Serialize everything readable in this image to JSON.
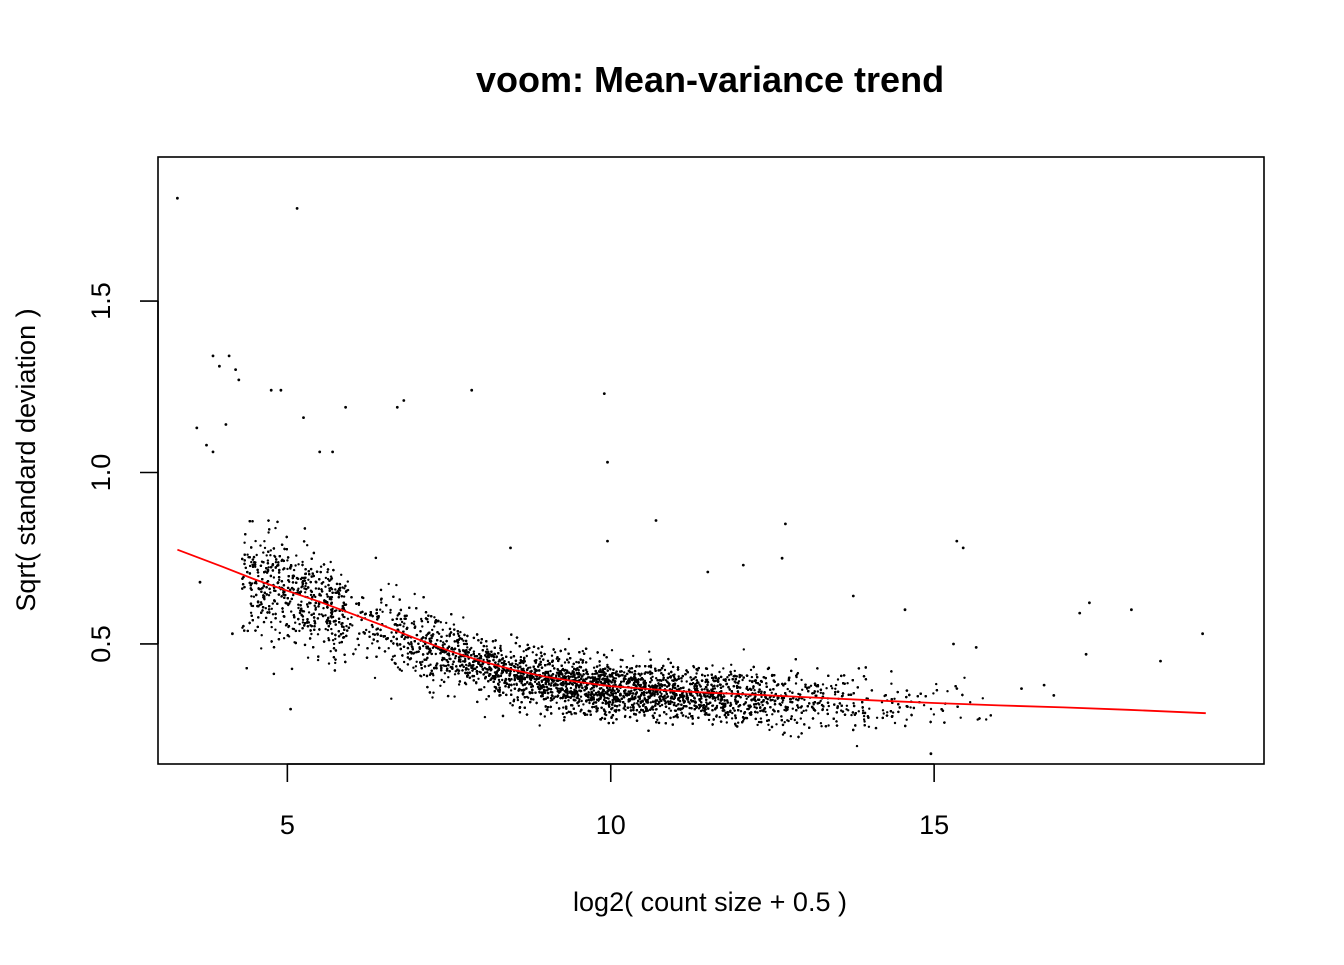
{
  "chart_data": {
    "type": "scatter",
    "title": "voom: Mean-variance trend",
    "xlabel": "log2( count size + 0.5 )",
    "ylabel": "Sqrt( standard deviation )",
    "xlim": [
      3.0,
      20.1
    ],
    "ylim": [
      0.15,
      1.92
    ],
    "x_ticks": [
      5,
      10,
      15
    ],
    "x_tick_labels": [
      "5",
      "10",
      "15"
    ],
    "y_ticks": [
      0.5,
      1.0,
      1.5
    ],
    "y_tick_labels": [
      "0.5",
      "1.0",
      "1.5"
    ],
    "grid": false,
    "legend": "none",
    "point_color": "#000000",
    "trend_color": "#ff0000",
    "series": [
      {
        "type": "scatter",
        "note_approximate_point_count": 9000,
        "outliers": [
          {
            "x": 3.3,
            "y": 1.8
          },
          {
            "x": 5.15,
            "y": 1.77
          },
          {
            "x": 3.85,
            "y": 1.34
          },
          {
            "x": 4.1,
            "y": 1.34
          },
          {
            "x": 3.95,
            "y": 1.31
          },
          {
            "x": 4.2,
            "y": 1.3
          },
          {
            "x": 4.25,
            "y": 1.27
          },
          {
            "x": 4.75,
            "y": 1.24
          },
          {
            "x": 4.9,
            "y": 1.24
          },
          {
            "x": 6.8,
            "y": 1.21
          },
          {
            "x": 6.7,
            "y": 1.19
          },
          {
            "x": 5.9,
            "y": 1.19
          },
          {
            "x": 7.85,
            "y": 1.24
          },
          {
            "x": 9.9,
            "y": 1.23
          },
          {
            "x": 9.95,
            "y": 1.03
          },
          {
            "x": 5.25,
            "y": 1.16
          },
          {
            "x": 3.6,
            "y": 1.13
          },
          {
            "x": 4.05,
            "y": 1.14
          },
          {
            "x": 3.75,
            "y": 1.08
          },
          {
            "x": 3.85,
            "y": 1.06
          },
          {
            "x": 5.5,
            "y": 1.06
          },
          {
            "x": 5.7,
            "y": 1.06
          },
          {
            "x": 12.7,
            "y": 0.85
          },
          {
            "x": 15.35,
            "y": 0.8
          },
          {
            "x": 15.45,
            "y": 0.78
          },
          {
            "x": 12.65,
            "y": 0.75
          },
          {
            "x": 13.75,
            "y": 0.64
          },
          {
            "x": 14.55,
            "y": 0.6
          },
          {
            "x": 17.4,
            "y": 0.62
          },
          {
            "x": 17.25,
            "y": 0.59
          },
          {
            "x": 18.05,
            "y": 0.6
          },
          {
            "x": 19.15,
            "y": 0.53
          },
          {
            "x": 17.35,
            "y": 0.47
          },
          {
            "x": 18.5,
            "y": 0.45
          },
          {
            "x": 15.65,
            "y": 0.49
          },
          {
            "x": 15.3,
            "y": 0.5
          },
          {
            "x": 3.65,
            "y": 0.68
          },
          {
            "x": 4.15,
            "y": 0.53
          },
          {
            "x": 5.05,
            "y": 0.31
          },
          {
            "x": 16.35,
            "y": 0.37
          },
          {
            "x": 16.7,
            "y": 0.38
          },
          {
            "x": 16.85,
            "y": 0.35
          },
          {
            "x": 14.95,
            "y": 0.18
          },
          {
            "x": 10.7,
            "y": 0.86
          },
          {
            "x": 9.95,
            "y": 0.8
          },
          {
            "x": 8.45,
            "y": 0.78
          },
          {
            "x": 12.05,
            "y": 0.73
          },
          {
            "x": 11.5,
            "y": 0.71
          }
        ]
      },
      {
        "type": "line",
        "name": "",
        "x": [
          3.3,
          4.0,
          4.5,
          5.0,
          5.5,
          6.0,
          6.5,
          7.0,
          7.5,
          8.0,
          8.5,
          9.0,
          9.5,
          10.0,
          10.5,
          11.0,
          11.5,
          12.0,
          13.0,
          14.0,
          15.0,
          16.0,
          17.0,
          18.0,
          19.2
        ],
        "y": [
          0.775,
          0.725,
          0.688,
          0.655,
          0.623,
          0.588,
          0.552,
          0.515,
          0.48,
          0.45,
          0.424,
          0.404,
          0.389,
          0.377,
          0.37,
          0.363,
          0.358,
          0.354,
          0.345,
          0.336,
          0.328,
          0.321,
          0.315,
          0.308,
          0.298
        ]
      }
    ]
  }
}
